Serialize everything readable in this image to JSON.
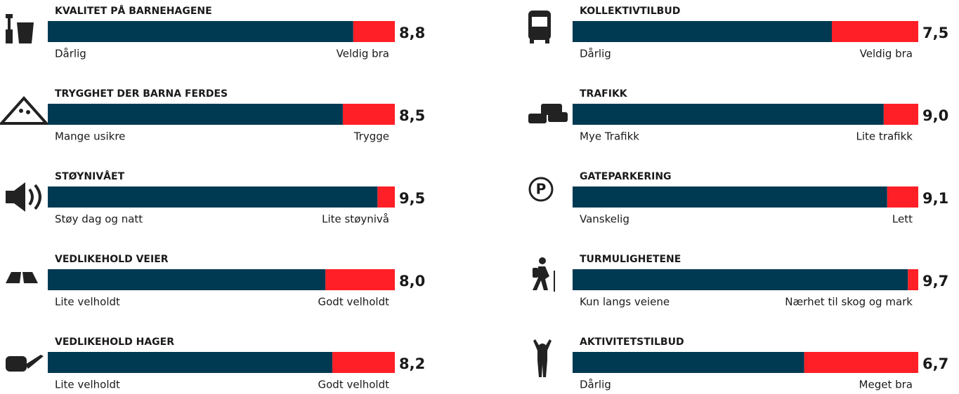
{
  "chart_data": [
    {
      "type": "bar",
      "title": "KVALITET PÅ BARNEHAGENE",
      "values": [
        8.8
      ],
      "value_labels": [
        "8,8"
      ],
      "xlim": [
        0,
        10
      ],
      "low_label": "Dårlig",
      "high_label": "Veldig bra",
      "color": "#003a52",
      "rest_color": "#ff1f26"
    },
    {
      "type": "bar",
      "title": "TRYGGHET DER BARNA FERDES",
      "values": [
        8.5
      ],
      "value_labels": [
        "8,5"
      ],
      "xlim": [
        0,
        10
      ],
      "low_label": "Mange usikre",
      "high_label": "Trygge",
      "color": "#003a52",
      "rest_color": "#ff1f26"
    },
    {
      "type": "bar",
      "title": "STØYNIVÅET",
      "values": [
        9.5
      ],
      "value_labels": [
        "9,5"
      ],
      "xlim": [
        0,
        10
      ],
      "low_label": "Støy dag og natt",
      "high_label": "Lite støynivå",
      "color": "#003a52",
      "rest_color": "#ff1f26"
    },
    {
      "type": "bar",
      "title": "VEDLIKEHOLD VEIER",
      "values": [
        8.0
      ],
      "value_labels": [
        "8,0"
      ],
      "xlim": [
        0,
        10
      ],
      "low_label": "Lite velholdt",
      "high_label": "Godt velholdt",
      "color": "#003a52",
      "rest_color": "#ff1f26"
    },
    {
      "type": "bar",
      "title": "VEDLIKEHOLD HAGER",
      "values": [
        8.2
      ],
      "value_labels": [
        "8,2"
      ],
      "xlim": [
        0,
        10
      ],
      "low_label": "Lite velholdt",
      "high_label": "Godt velholdt",
      "color": "#003a52",
      "rest_color": "#ff1f26"
    },
    {
      "type": "bar",
      "title": "KOLLEKTIVTILBUD",
      "values": [
        7.5
      ],
      "value_labels": [
        "7,5"
      ],
      "xlim": [
        0,
        10
      ],
      "low_label": "Dårlig",
      "high_label": "Veldig bra",
      "color": "#003a52",
      "rest_color": "#ff1f26"
    },
    {
      "type": "bar",
      "title": "TRAFIKK",
      "values": [
        9.0
      ],
      "value_labels": [
        "9,0"
      ],
      "xlim": [
        0,
        10
      ],
      "low_label": "Mye Trafikk",
      "high_label": "Lite trafikk",
      "color": "#003a52",
      "rest_color": "#ff1f26"
    },
    {
      "type": "bar",
      "title": "GATEPARKERING",
      "values": [
        9.1
      ],
      "value_labels": [
        "9,1"
      ],
      "xlim": [
        0,
        10
      ],
      "low_label": "Vanskelig",
      "high_label": "Lett",
      "color": "#003a52",
      "rest_color": "#ff1f26"
    },
    {
      "type": "bar",
      "title": "TURMULIGHETENE",
      "values": [
        9.7
      ],
      "value_labels": [
        "9,7"
      ],
      "xlim": [
        0,
        10
      ],
      "low_label": "Kun langs veiene",
      "high_label": "Nærhet til skog og mark",
      "color": "#003a52",
      "rest_color": "#ff1f26"
    },
    {
      "type": "bar",
      "title": "AKTIVITETSTILBUD",
      "values": [
        6.7
      ],
      "value_labels": [
        "6,7"
      ],
      "xlim": [
        0,
        10
      ],
      "low_label": "Dårlig",
      "high_label": "Meget bra",
      "color": "#003a52",
      "rest_color": "#ff1f26"
    }
  ]
}
